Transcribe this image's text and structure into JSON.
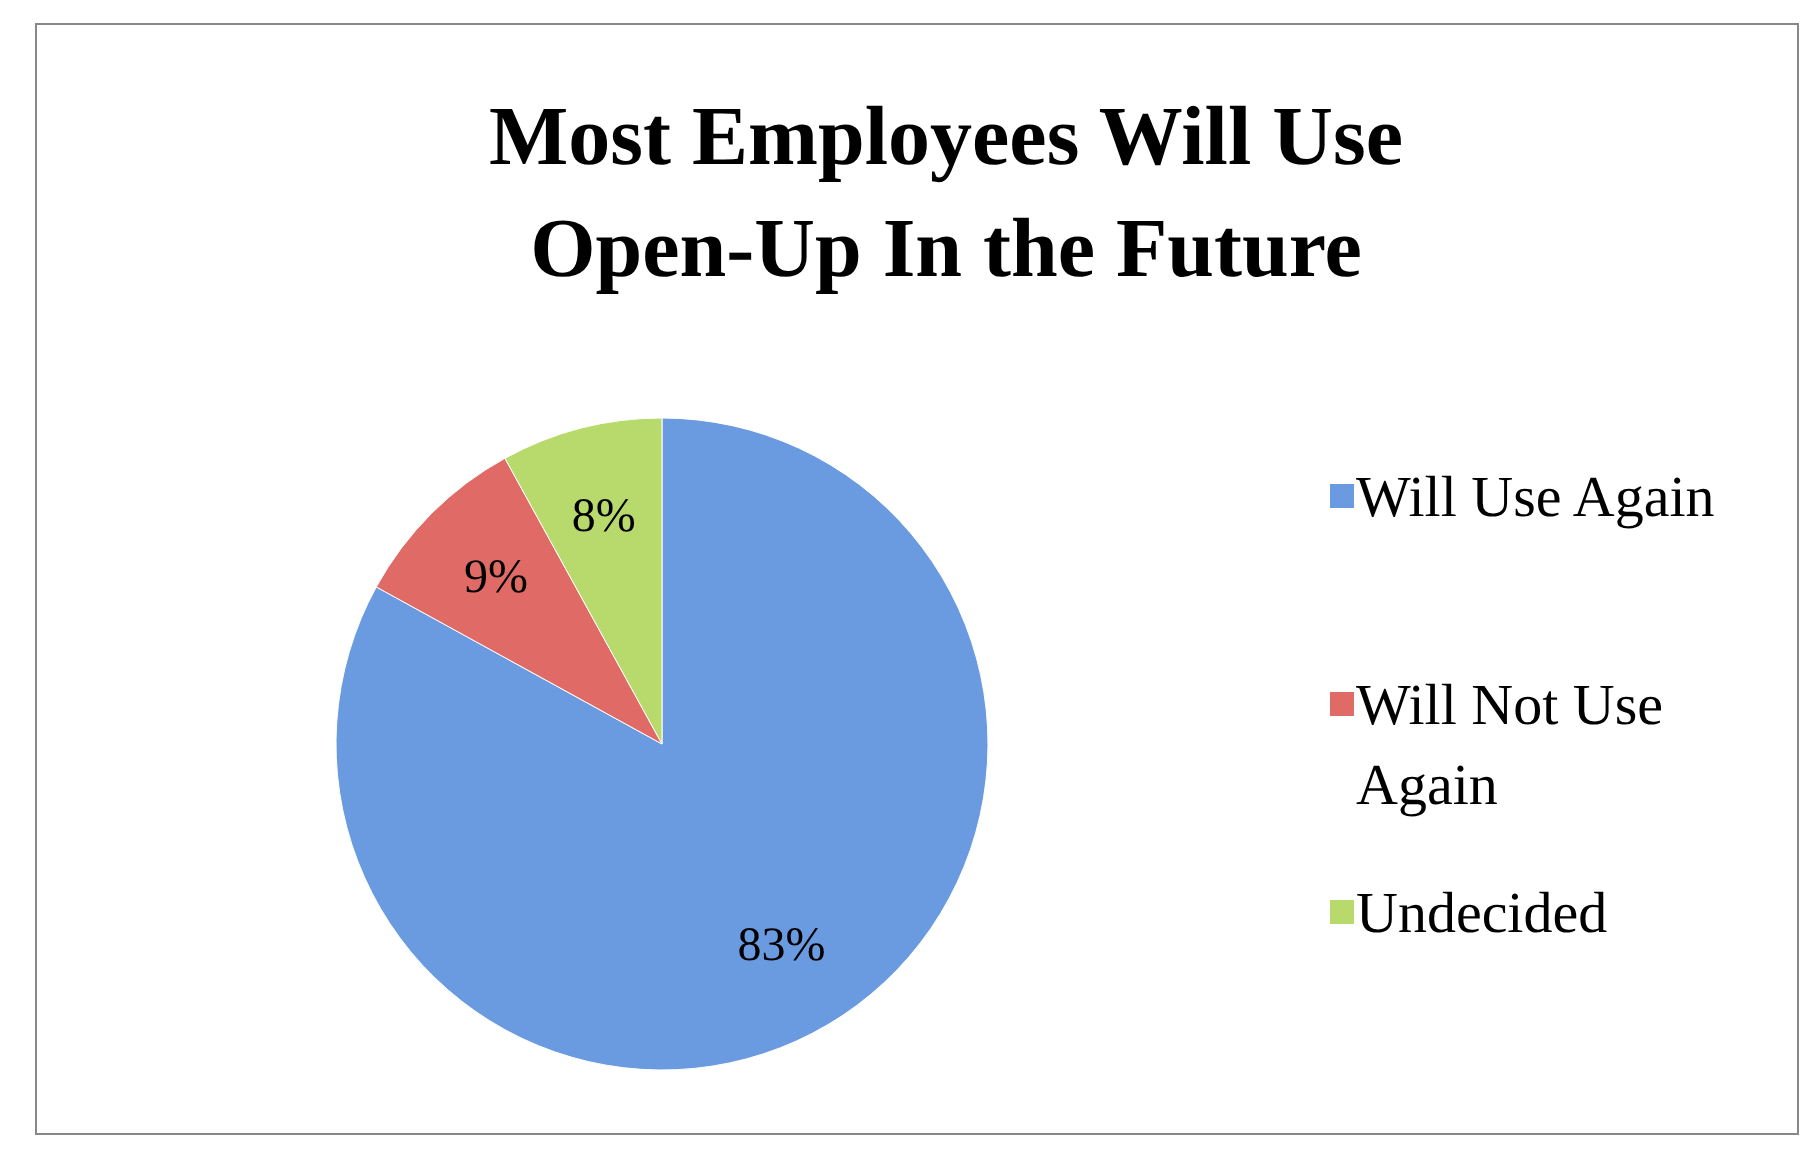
{
  "chart_data": {
    "type": "pie",
    "title": "Most Employees Will Use Open-Up In the Future",
    "categories": [
      "Will Use Again",
      "Will Not Use Again",
      "Undecided"
    ],
    "values": [
      83,
      9,
      8
    ],
    "colors": [
      "#6a9be0",
      "#e06a66",
      "#b8d96c"
    ],
    "value_labels": [
      "83%",
      "9%",
      "8%"
    ],
    "legend": "right"
  }
}
